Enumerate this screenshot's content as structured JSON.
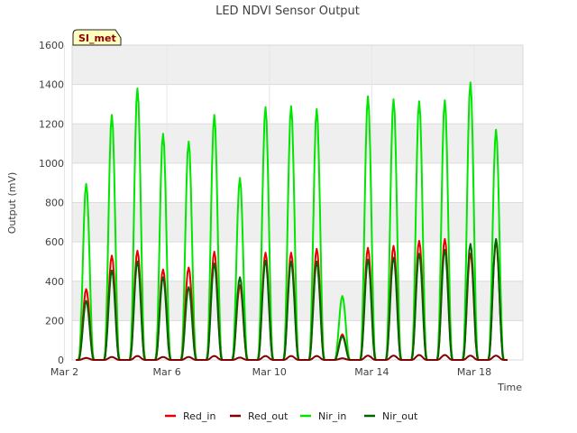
{
  "chart_data": {
    "type": "line",
    "title": "LED NDVI Sensor Output",
    "xlabel": "Time",
    "ylabel": "Output (mV)",
    "badge": "SI_met",
    "xlim": [
      2.3,
      19.9
    ],
    "ylim": [
      0,
      1600
    ],
    "y_ticks": [
      0,
      200,
      400,
      600,
      800,
      1000,
      1200,
      1400,
      1600
    ],
    "x_ticks": [
      {
        "value": 2,
        "label": "Mar 2"
      },
      {
        "value": 6,
        "label": "Mar 6"
      },
      {
        "value": 10,
        "label": "Mar 10"
      },
      {
        "value": 14,
        "label": "Mar 14"
      },
      {
        "value": 18,
        "label": "Mar 18"
      }
    ],
    "x_unit": "day of March (fractional)",
    "grid": true,
    "shaded_bands": true,
    "legend_position": "bottom",
    "series": [
      {
        "name": "Red_in",
        "color": "#e60000",
        "peaks": [
          {
            "x": 2.85,
            "y": 360
          },
          {
            "x": 3.85,
            "y": 530
          },
          {
            "x": 4.85,
            "y": 555
          },
          {
            "x": 5.85,
            "y": 460
          },
          {
            "x": 6.85,
            "y": 470
          },
          {
            "x": 7.85,
            "y": 550
          },
          {
            "x": 8.85,
            "y": 380
          },
          {
            "x": 9.85,
            "y": 545
          },
          {
            "x": 10.85,
            "y": 545
          },
          {
            "x": 11.85,
            "y": 565
          },
          {
            "x": 12.85,
            "y": 130
          },
          {
            "x": 13.85,
            "y": 570
          },
          {
            "x": 14.85,
            "y": 580
          },
          {
            "x": 15.85,
            "y": 605
          },
          {
            "x": 16.85,
            "y": 615
          },
          {
            "x": 17.85,
            "y": 540
          },
          {
            "x": 18.85,
            "y": 600
          }
        ]
      },
      {
        "name": "Red_out",
        "color": "#800000",
        "peaks": [
          {
            "x": 2.85,
            "y": 10
          },
          {
            "x": 3.85,
            "y": 15
          },
          {
            "x": 4.85,
            "y": 20
          },
          {
            "x": 5.85,
            "y": 15
          },
          {
            "x": 6.85,
            "y": 15
          },
          {
            "x": 7.85,
            "y": 20
          },
          {
            "x": 8.85,
            "y": 12
          },
          {
            "x": 9.85,
            "y": 20
          },
          {
            "x": 10.85,
            "y": 20
          },
          {
            "x": 11.85,
            "y": 20
          },
          {
            "x": 12.85,
            "y": 8
          },
          {
            "x": 13.85,
            "y": 22
          },
          {
            "x": 14.85,
            "y": 22
          },
          {
            "x": 15.85,
            "y": 25
          },
          {
            "x": 16.85,
            "y": 25
          },
          {
            "x": 17.85,
            "y": 22
          },
          {
            "x": 18.85,
            "y": 22
          }
        ]
      },
      {
        "name": "Nir_in",
        "color": "#00e600",
        "peaks": [
          {
            "x": 2.85,
            "y": 895
          },
          {
            "x": 3.85,
            "y": 1245
          },
          {
            "x": 4.85,
            "y": 1380
          },
          {
            "x": 5.85,
            "y": 1150
          },
          {
            "x": 6.85,
            "y": 1110
          },
          {
            "x": 7.85,
            "y": 1245
          },
          {
            "x": 8.85,
            "y": 925
          },
          {
            "x": 9.85,
            "y": 1285
          },
          {
            "x": 10.85,
            "y": 1290
          },
          {
            "x": 11.85,
            "y": 1275
          },
          {
            "x": 12.85,
            "y": 325
          },
          {
            "x": 13.85,
            "y": 1340
          },
          {
            "x": 14.85,
            "y": 1325
          },
          {
            "x": 15.85,
            "y": 1315
          },
          {
            "x": 16.85,
            "y": 1320
          },
          {
            "x": 17.85,
            "y": 1410
          },
          {
            "x": 18.85,
            "y": 1170
          }
        ]
      },
      {
        "name": "Nir_out",
        "color": "#006400",
        "peaks": [
          {
            "x": 2.85,
            "y": 300
          },
          {
            "x": 3.85,
            "y": 455
          },
          {
            "x": 4.85,
            "y": 500
          },
          {
            "x": 5.85,
            "y": 420
          },
          {
            "x": 6.85,
            "y": 370
          },
          {
            "x": 7.85,
            "y": 490
          },
          {
            "x": 8.85,
            "y": 420
          },
          {
            "x": 9.85,
            "y": 505
          },
          {
            "x": 10.85,
            "y": 500
          },
          {
            "x": 11.85,
            "y": 500
          },
          {
            "x": 12.85,
            "y": 120
          },
          {
            "x": 13.85,
            "y": 510
          },
          {
            "x": 14.85,
            "y": 520
          },
          {
            "x": 15.85,
            "y": 540
          },
          {
            "x": 16.85,
            "y": 560
          },
          {
            "x": 17.85,
            "y": 590
          },
          {
            "x": 18.85,
            "y": 615
          }
        ]
      }
    ]
  }
}
